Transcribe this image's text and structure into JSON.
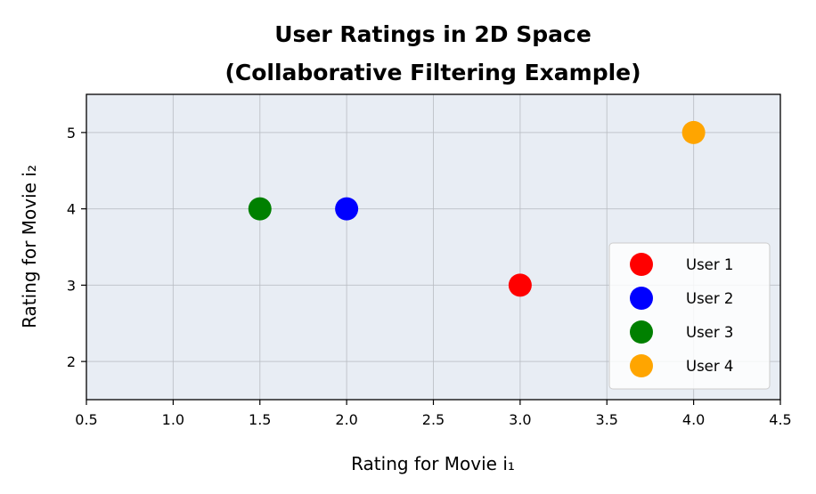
{
  "chart_data": {
    "type": "scatter",
    "title_lines": [
      "User Ratings in 2D Space",
      "(Collaborative Filtering Example)"
    ],
    "xlabel": "Rating for Movie i₁",
    "ylabel": "Rating for Movie i₂",
    "xlim": [
      0.5,
      4.5
    ],
    "ylim": [
      1.5,
      5.5
    ],
    "xticks": [
      "0.5",
      "1.0",
      "1.5",
      "2.0",
      "2.5",
      "3.0",
      "3.5",
      "4.0",
      "4.5"
    ],
    "yticks": [
      "2",
      "3",
      "4",
      "5"
    ],
    "grid": true,
    "legend_position": "lower-right",
    "background_color": "#e8edf4",
    "series": [
      {
        "name": "User 1",
        "color": "#ff0000",
        "x": 3.0,
        "y": 3.0
      },
      {
        "name": "User 2",
        "color": "#0000ff",
        "x": 2.0,
        "y": 4.0
      },
      {
        "name": "User 3",
        "color": "#008000",
        "x": 1.5,
        "y": 4.0
      },
      {
        "name": "User 4",
        "color": "#ffa500",
        "x": 4.0,
        "y": 5.0
      }
    ]
  }
}
